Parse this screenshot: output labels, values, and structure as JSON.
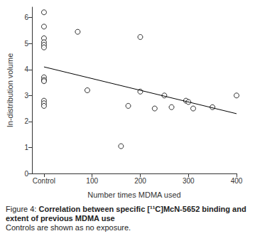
{
  "chart_data": {
    "type": "scatter",
    "xlabel": "Number times MDMA used",
    "ylabel": "In-distribution volume",
    "xlim": [
      -25,
      400
    ],
    "xticks": [
      {
        "value": 0,
        "label": "Control"
      },
      100,
      200,
      300,
      400
    ],
    "ylim": [
      0,
      6.4
    ],
    "yticks": [
      0,
      1,
      2,
      3,
      4,
      5,
      6
    ],
    "grid": false,
    "series": [
      {
        "type": "scatter",
        "marker": "open circle",
        "color": "#000000",
        "x": [
          0,
          0,
          0,
          0,
          0,
          0,
          0,
          0,
          0,
          0,
          0,
          0,
          70,
          90,
          160,
          175,
          200,
          200,
          230,
          250,
          265,
          295,
          300,
          310,
          350,
          400
        ],
        "values": [
          6.2,
          5.65,
          5.2,
          5.05,
          4.95,
          4.85,
          3.7,
          3.6,
          3.55,
          2.8,
          2.7,
          2.6,
          5.45,
          3.2,
          1.05,
          2.6,
          5.25,
          3.15,
          2.5,
          3.0,
          2.55,
          2.8,
          2.75,
          2.5,
          2.55,
          3.0
        ]
      },
      {
        "type": "line",
        "line_style": "solid",
        "color": "#000000",
        "x": [
          0,
          400
        ],
        "values": [
          4.1,
          2.3
        ]
      }
    ]
  },
  "caption": {
    "label": "Figure 4:",
    "title": "Correlation between specific [¹¹C]McN-5652 binding and extent of previous MDMA use",
    "note": "Controls are shown as no exposure."
  }
}
